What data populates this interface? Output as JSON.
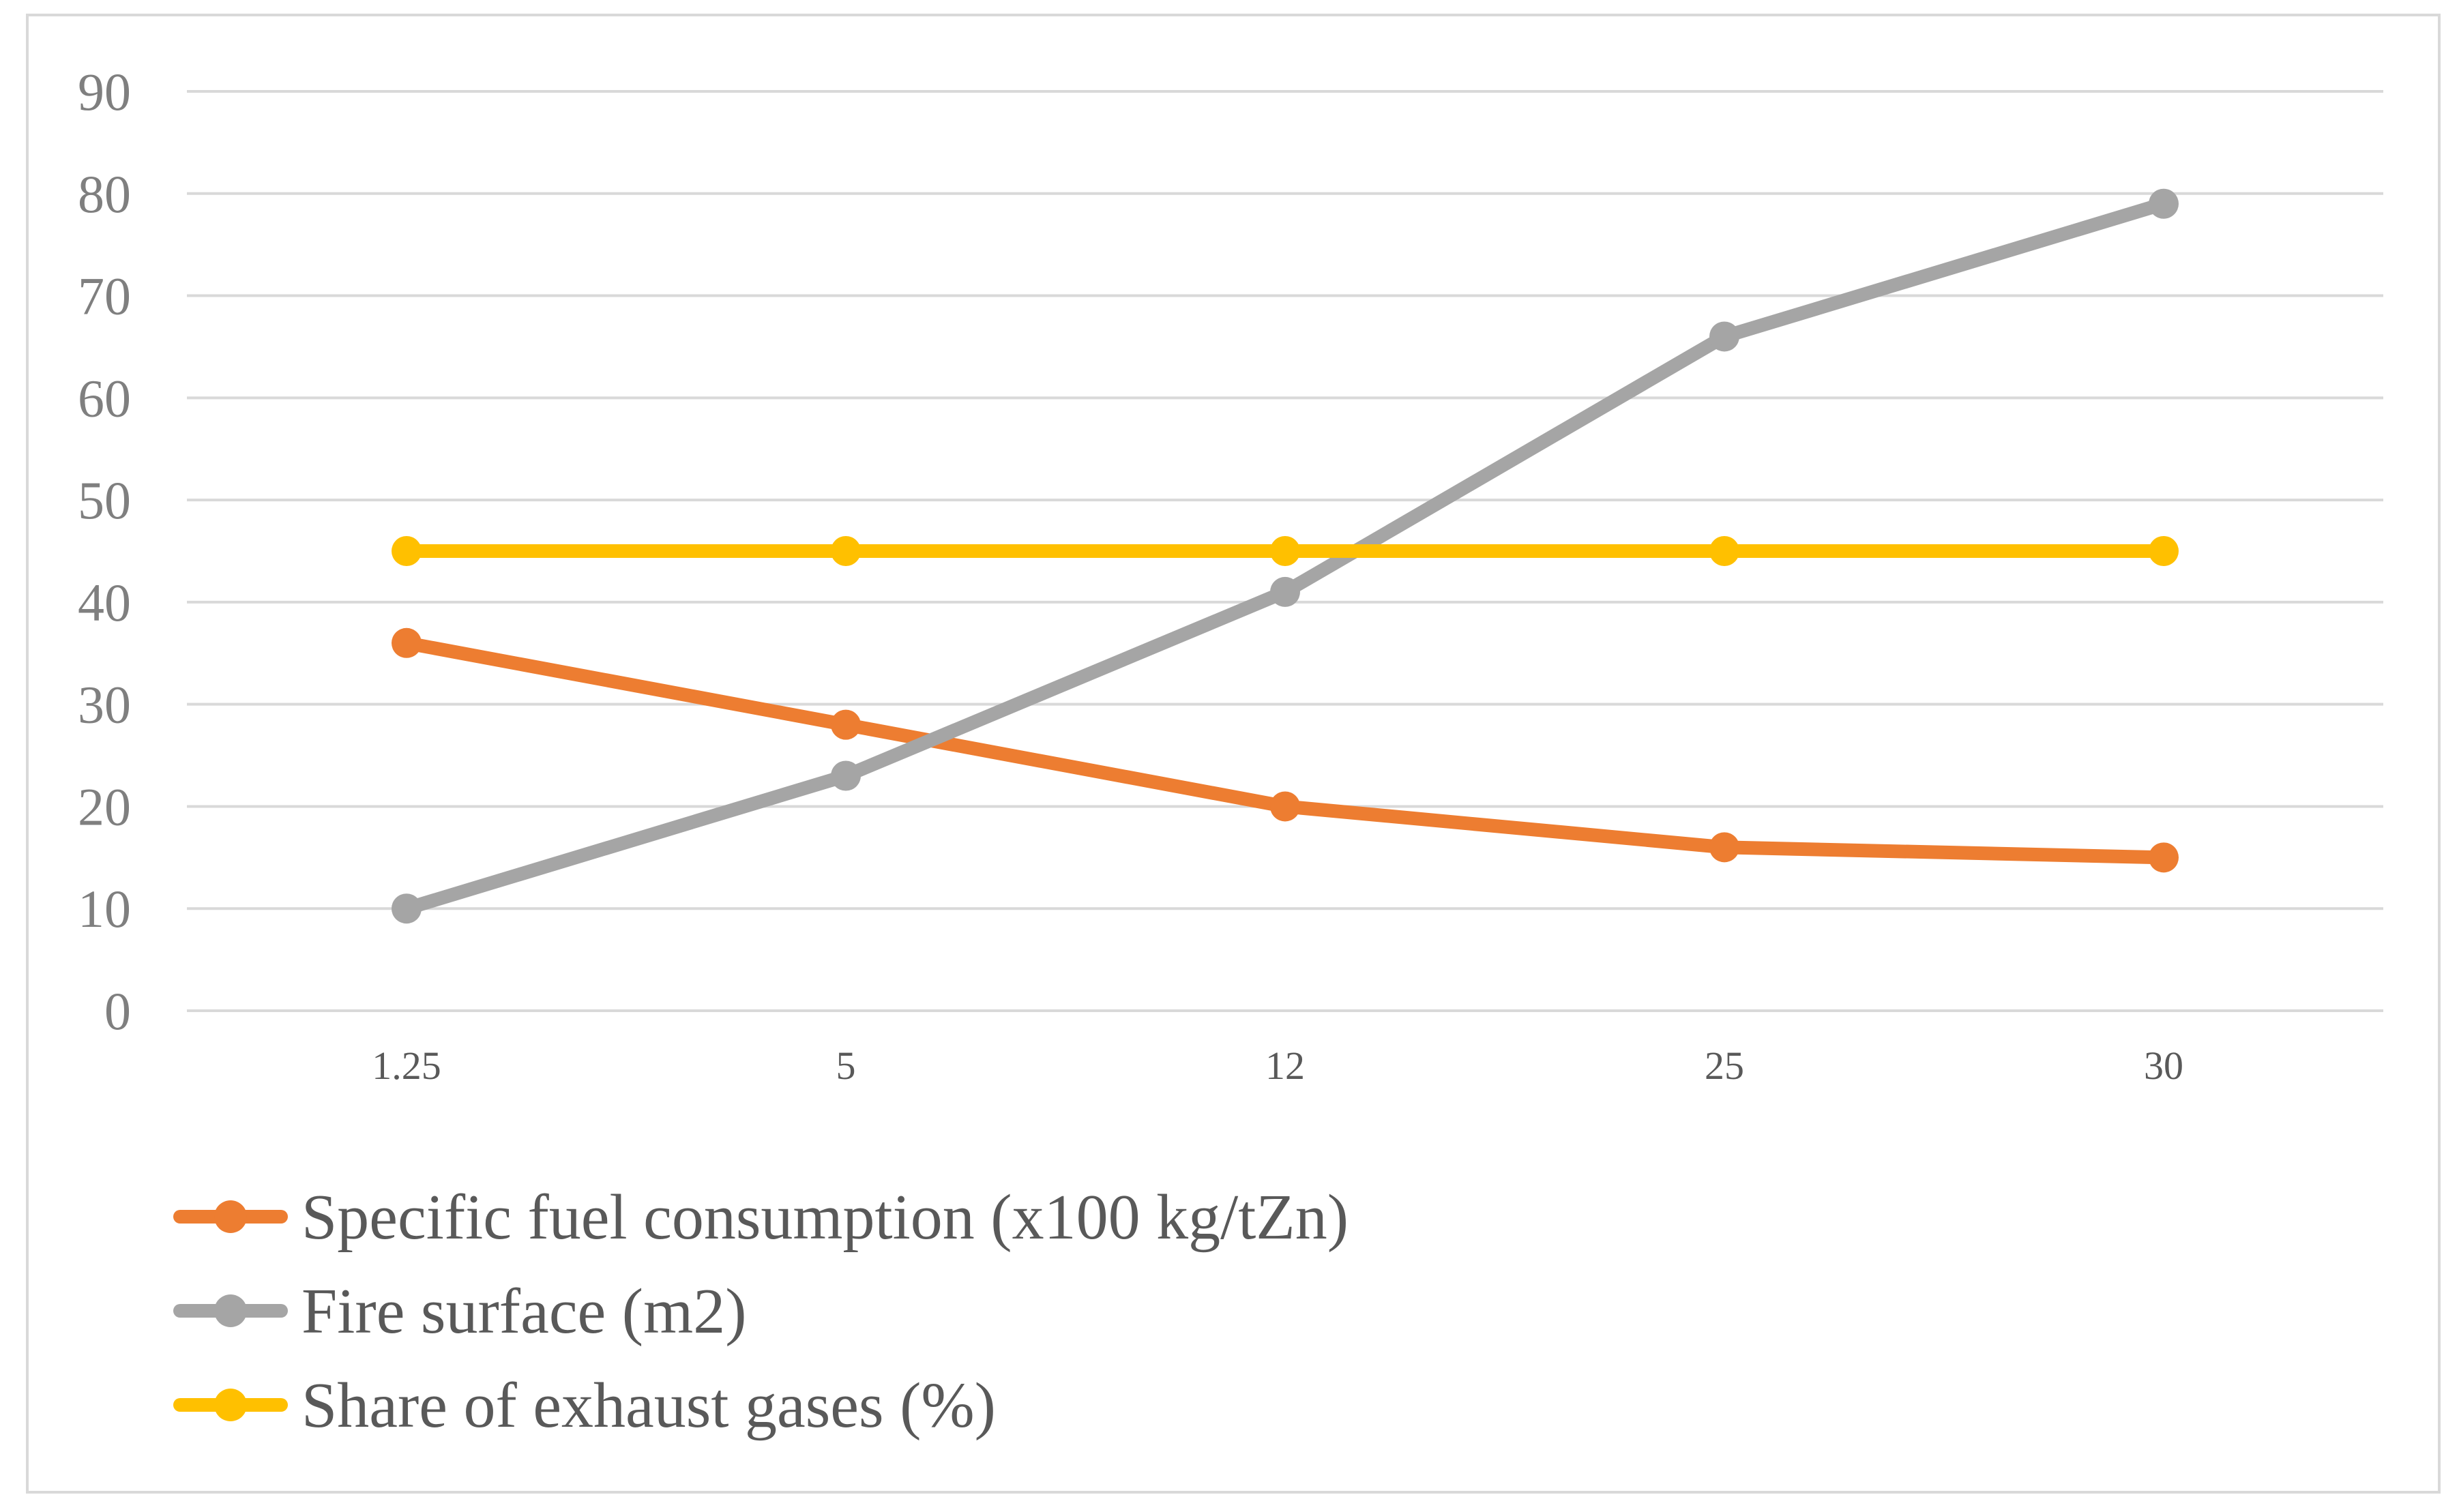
{
  "chart_data": {
    "type": "line",
    "title": "",
    "xlabel": "",
    "ylabel": "",
    "categories": [
      "1.25",
      "5",
      "12",
      "25",
      "30"
    ],
    "ylim": [
      0,
      90
    ],
    "yticks": [
      0,
      10,
      20,
      30,
      40,
      50,
      60,
      70,
      80,
      90
    ],
    "grid": true,
    "legend_position": "bottom-left",
    "series": [
      {
        "name": "Specific fuel consumption (x100 kg/tZn)",
        "color": "#ed7d31",
        "values": [
          36,
          28,
          20,
          16,
          15
        ]
      },
      {
        "name": "Fire surface (m2)",
        "color": "#a5a5a5",
        "values": [
          10,
          23,
          41,
          66,
          79
        ]
      },
      {
        "name": "Share of exhaust gases (%)",
        "color": "#ffc000",
        "values": [
          45,
          45,
          45,
          45,
          45
        ]
      }
    ]
  }
}
